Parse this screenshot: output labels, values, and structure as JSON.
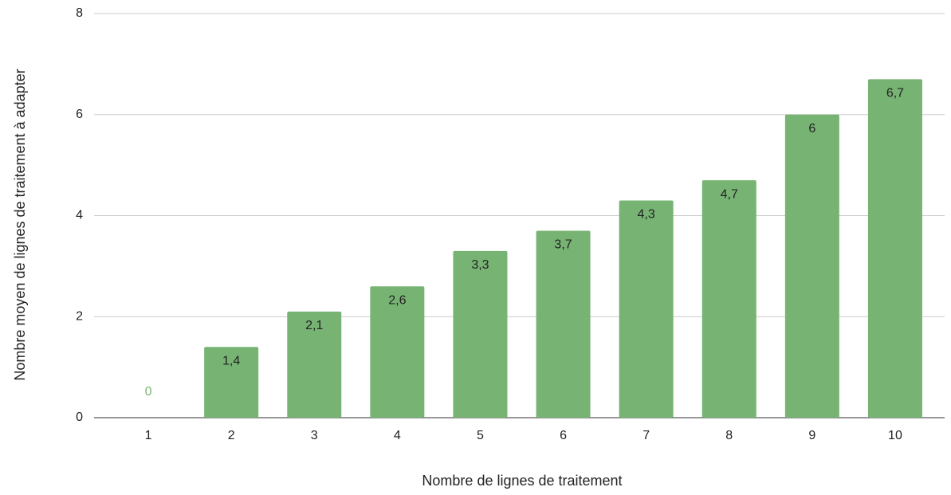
{
  "chart_data": {
    "type": "bar",
    "x_label": "Nombre de lignes de traitement",
    "y_label": "Nombre moyen de lignes de traitement à adapter",
    "categories": [
      "1",
      "2",
      "3",
      "4",
      "5",
      "6",
      "7",
      "8",
      "9",
      "10"
    ],
    "values": [
      0,
      1.4,
      2.1,
      2.6,
      3.3,
      3.7,
      4.3,
      4.7,
      6,
      6.7
    ],
    "value_labels": [
      "0",
      "1,4",
      "2,1",
      "2,6",
      "3,3",
      "3,7",
      "4,3",
      "4,7",
      "6",
      "6,7"
    ],
    "color": "#77b474",
    "ylim": [
      0,
      8
    ],
    "yticks": [
      0,
      2,
      4,
      6,
      8
    ],
    "grid": true
  }
}
